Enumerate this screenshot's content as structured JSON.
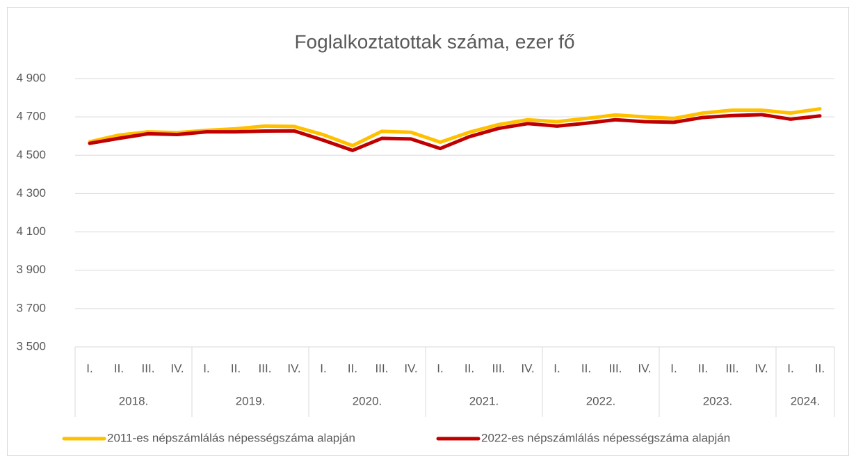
{
  "chart_data": {
    "type": "line",
    "title": "Foglalkoztatottak száma, ezer fő",
    "categories": [
      [
        "2018.",
        "I."
      ],
      [
        "2018.",
        "II."
      ],
      [
        "2018.",
        "III."
      ],
      [
        "2018.",
        "IV."
      ],
      [
        "2019.",
        "I."
      ],
      [
        "2019.",
        "II."
      ],
      [
        "2019.",
        "III."
      ],
      [
        "2019.",
        "IV."
      ],
      [
        "2020.",
        "I."
      ],
      [
        "2020.",
        "II."
      ],
      [
        "2020.",
        "III."
      ],
      [
        "2020.",
        "IV."
      ],
      [
        "2021.",
        "I."
      ],
      [
        "2021.",
        "II."
      ],
      [
        "2021.",
        "III."
      ],
      [
        "2021.",
        "IV."
      ],
      [
        "2022.",
        "I."
      ],
      [
        "2022.",
        "II."
      ],
      [
        "2022.",
        "III."
      ],
      [
        "2022.",
        "IV."
      ],
      [
        "2023.",
        "I."
      ],
      [
        "2023.",
        "II."
      ],
      [
        "2023.",
        "III."
      ],
      [
        "2023.",
        "IV."
      ],
      [
        "2024.",
        "I."
      ],
      [
        "2024.",
        "II."
      ]
    ],
    "series": [
      {
        "name": "2011-es népszámlálás népességszáma alapján",
        "color": "#FFC000",
        "values": [
          4570,
          4605,
          4622,
          4618,
          4630,
          4638,
          4652,
          4650,
          4607,
          4550,
          4625,
          4620,
          4568,
          4620,
          4660,
          4685,
          4675,
          4692,
          4710,
          4700,
          4692,
          4720,
          4735,
          4735,
          4720,
          4742
        ]
      },
      {
        "name": "2022-es népszámlálás népességszáma alapján",
        "color": "#C00000",
        "values": [
          4562,
          4588,
          4612,
          4608,
          4622,
          4622,
          4626,
          4627,
          4578,
          4525,
          4588,
          4585,
          4535,
          4597,
          4640,
          4665,
          4652,
          4667,
          4685,
          4675,
          4672,
          4697,
          4707,
          4712,
          4688,
          4705
        ]
      }
    ],
    "ylim": [
      3500,
      4900
    ],
    "yticks": [
      {
        "value": 3500,
        "label": "3 500"
      },
      {
        "value": 3700,
        "label": "3 700"
      },
      {
        "value": 3900,
        "label": "3 900"
      },
      {
        "value": 4100,
        "label": "4 100"
      },
      {
        "value": 4300,
        "label": "4 300"
      },
      {
        "value": 4500,
        "label": "4 500"
      },
      {
        "value": 4700,
        "label": "4 700"
      },
      {
        "value": 4900,
        "label": "4 900"
      }
    ],
    "grid": true,
    "legend": "bottom"
  }
}
